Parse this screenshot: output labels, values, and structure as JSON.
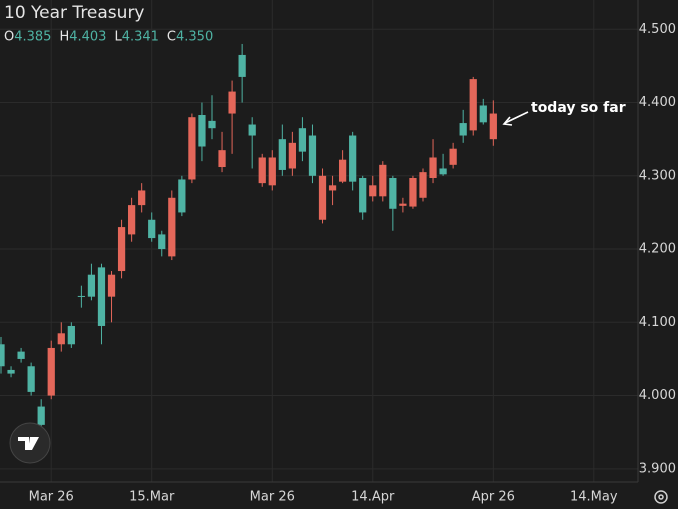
{
  "chart_data": {
    "type": "candlestick",
    "title": "10 Year Treasury",
    "header": {
      "labels": [
        "O",
        "H",
        "L",
        "C"
      ],
      "values": [
        "4.385",
        "4.403",
        "4.341",
        "4.350"
      ]
    },
    "annotation": "today so far",
    "categories": [
      null,
      null,
      null,
      null,
      null,
      null,
      null,
      null,
      null,
      null,
      null,
      null,
      null,
      null,
      null,
      null,
      null,
      null,
      null,
      null,
      null,
      null,
      null,
      null,
      null,
      null,
      null,
      null,
      null,
      null,
      null,
      null,
      null,
      null,
      null,
      null,
      null,
      null,
      null,
      null,
      null,
      null,
      null,
      null,
      null,
      null,
      null,
      null,
      null,
      null
    ],
    "open": [
      4.04,
      4.03,
      4.05,
      4.005,
      3.96,
      4.065,
      4.085,
      4.07,
      4.135,
      4.135,
      4.095,
      4.165,
      4.23,
      4.26,
      4.28,
      4.215,
      4.2,
      4.27,
      4.25,
      4.38,
      4.34,
      4.365,
      4.335,
      4.415,
      4.435,
      4.355,
      4.325,
      4.325,
      4.308,
      4.345,
      4.333,
      4.3,
      4.3,
      4.287,
      4.322,
      4.292,
      4.25,
      4.287,
      4.315,
      4.255,
      4.262,
      4.297,
      4.305,
      4.325,
      4.302,
      4.337,
      4.355,
      4.432,
      4.373,
      4.385
    ],
    "high": [
      4.08,
      4.04,
      4.065,
      4.045,
      3.995,
      4.075,
      4.1,
      4.1,
      4.15,
      4.18,
      4.18,
      4.17,
      4.24,
      4.27,
      4.29,
      4.25,
      4.225,
      4.28,
      4.3,
      4.385,
      4.4,
      4.41,
      4.36,
      4.43,
      4.48,
      4.38,
      4.33,
      4.335,
      4.37,
      4.36,
      4.38,
      4.37,
      4.31,
      4.3,
      4.335,
      4.36,
      4.3,
      4.3,
      4.32,
      4.3,
      4.27,
      4.3,
      4.31,
      4.35,
      4.33,
      4.345,
      4.39,
      4.435,
      4.405,
      4.403
    ],
    "low": [
      4.03,
      4.025,
      4.045,
      4.0,
      3.945,
      3.995,
      4.06,
      4.065,
      4.12,
      4.13,
      4.07,
      4.1,
      4.16,
      4.21,
      4.25,
      4.21,
      4.19,
      4.185,
      4.245,
      4.29,
      4.32,
      4.35,
      4.305,
      4.33,
      4.4,
      4.31,
      4.285,
      4.28,
      4.3,
      4.3,
      4.32,
      4.29,
      4.235,
      4.26,
      4.29,
      4.28,
      4.24,
      4.265,
      4.265,
      4.225,
      4.25,
      4.255,
      4.265,
      4.29,
      4.3,
      4.31,
      4.345,
      4.355,
      4.37,
      4.341
    ],
    "close": [
      4.07,
      4.035,
      4.06,
      4.04,
      3.985,
      4.0,
      4.07,
      4.095,
      4.136,
      4.165,
      4.175,
      4.135,
      4.17,
      4.22,
      4.26,
      4.24,
      4.22,
      4.19,
      4.295,
      4.295,
      4.383,
      4.375,
      4.312,
      4.385,
      4.465,
      4.37,
      4.29,
      4.287,
      4.35,
      4.31,
      4.365,
      4.355,
      4.24,
      4.28,
      4.292,
      4.355,
      4.297,
      4.272,
      4.272,
      4.297,
      4.259,
      4.258,
      4.27,
      4.297,
      4.31,
      4.315,
      4.372,
      4.362,
      4.396,
      4.35
    ],
    "up_color": "#4fb3a4",
    "down_color": "#e4675a",
    "xlim": [
      -0.1,
      63.4
    ],
    "xticks": [
      {
        "value": 5,
        "label": "Mar 26"
      },
      {
        "value": 15,
        "label": "15.Mar"
      },
      {
        "value": 27,
        "label": "Mar 26"
      },
      {
        "value": 37,
        "label": "14.Apr"
      },
      {
        "value": 49,
        "label": "Apr 26"
      },
      {
        "value": 59,
        "label": "14.May"
      }
    ],
    "ylim": [
      3.882,
      4.54
    ],
    "yticks": [
      {
        "value": 3.9,
        "label": "3.900"
      },
      {
        "value": 4.0,
        "label": "4.000"
      },
      {
        "value": 4.1,
        "label": "4.100"
      },
      {
        "value": 4.2,
        "label": "4.200"
      },
      {
        "value": 4.3,
        "label": "4.300"
      },
      {
        "value": 4.4,
        "label": "4.400"
      },
      {
        "value": 4.5,
        "label": "4.500"
      }
    ],
    "grid": true
  }
}
